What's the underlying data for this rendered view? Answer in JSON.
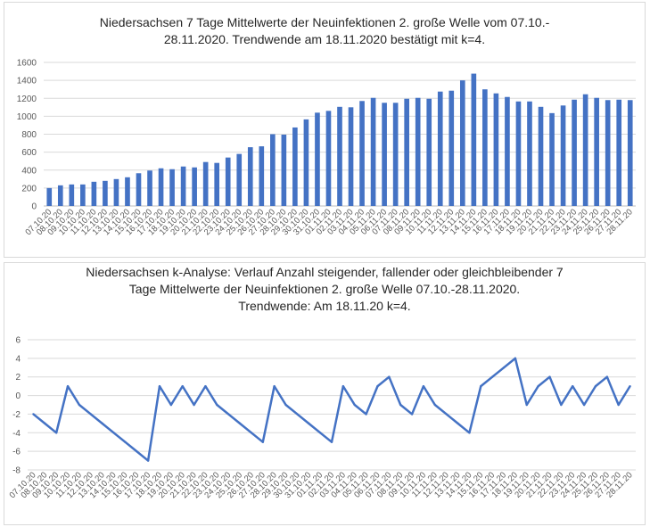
{
  "chart_data": [
    {
      "type": "bar",
      "title_lines": [
        "Niedersachsen 7 Tage Mittelwerte der Neuinfektionen 2. große Welle vom 07.10.-",
        "28.11.2020. Trendwende am 18.11.2020 bestätigt mit k=4."
      ],
      "categories": [
        "07.10.20",
        "08.10.20",
        "09.10.20",
        "10.10.20",
        "11.10.20",
        "12.10.20",
        "13.10.20",
        "14.10.20",
        "15.10.20",
        "16.10.20",
        "17.10.20",
        "18.10.20",
        "19.10.20",
        "20.10.20",
        "21.10.20",
        "22.10.20",
        "23.10.20",
        "24.10.20",
        "25.10.20",
        "26.10.20",
        "27.10.20",
        "28.10.20",
        "29.10.20",
        "30.10.20",
        "31.10.20",
        "01.11.20",
        "02.11.20",
        "03.11.20",
        "04.11.20",
        "05.11.20",
        "06.11.20",
        "07.11.20",
        "08.11.20",
        "09.11.20",
        "10.11.20",
        "11.11.20",
        "12.11.20",
        "13.11.20",
        "14.11.20",
        "15.11.20",
        "16.11.20",
        "17.11.20",
        "18.11.20",
        "19.11.20",
        "20.11.20",
        "21.11.20",
        "22.11.20",
        "23.11.20",
        "24.11.20",
        "25.11.20",
        "26.11.20",
        "27.11.20",
        "28.11.20"
      ],
      "values": [
        200,
        230,
        240,
        240,
        270,
        280,
        300,
        320,
        365,
        395,
        420,
        410,
        440,
        430,
        490,
        480,
        540,
        580,
        655,
        665,
        800,
        795,
        875,
        965,
        1040,
        1060,
        1105,
        1100,
        1170,
        1205,
        1150,
        1150,
        1195,
        1205,
        1195,
        1275,
        1285,
        1400,
        1475,
        1300,
        1255,
        1215,
        1165,
        1165,
        1105,
        1035,
        1120,
        1185,
        1245,
        1205,
        1180,
        1185,
        1180
      ],
      "yticks": [
        "1600",
        "1400",
        "1200",
        "1000",
        "800",
        "600",
        "400",
        "200",
        "0"
      ],
      "ylim": [
        0,
        1600
      ],
      "grid": true,
      "bar_color": "#4472c4"
    },
    {
      "type": "line",
      "title_lines": [
        "Niedersachsen k-Analyse: Verlauf Anzahl steigender, fallender oder gleichbleibender 7",
        "Tage Mittelwerte der Neuinfektionen 2. große Welle 07.10.-28.11.2020.",
        "Trendwende: Am 18.11.20 k=4."
      ],
      "categories": [
        "07.10.20",
        "08.10.20",
        "09.10.20",
        "10.10.20",
        "11.10.20",
        "12.10.20",
        "13.10.20",
        "14.10.20",
        "15.10.20",
        "16.10.20",
        "17.10.20",
        "18.10.20",
        "19.10.20",
        "20.10.20",
        "21.10.20",
        "22.10.20",
        "23.10.20",
        "24.10.20",
        "25.10.20",
        "26.10.20",
        "27.10.20",
        "28.10.20",
        "29.10.20",
        "30.10.20",
        "31.10.20",
        "01.11.20",
        "02.11.20",
        "03.11.20",
        "04.11.20",
        "05.11.20",
        "06.11.20",
        "07.11.20",
        "08.11.20",
        "09.11.20",
        "10.11.20",
        "11.11.20",
        "12.11.20",
        "13.11.20",
        "14.11.20",
        "15.11.20",
        "16.11.20",
        "17.11.20",
        "18.11.20",
        "19.11.20",
        "20.11.20",
        "21.11.20",
        "22.11.20",
        "23.11.20",
        "24.11.20",
        "25.11.20",
        "26.11.20",
        "27.11.20",
        "28.11.20"
      ],
      "values": [
        -2,
        -3,
        -4,
        1,
        -1,
        -2,
        -3,
        -4,
        -5,
        -6,
        -7,
        1,
        -1,
        1,
        -1,
        1,
        -1,
        -2,
        -3,
        -4,
        -5,
        1,
        -1,
        -2,
        -3,
        -4,
        -5,
        1,
        -1,
        -2,
        1,
        2,
        -1,
        -2,
        1,
        -1,
        -2,
        -3,
        -4,
        1,
        2,
        3,
        4,
        -1,
        1,
        2,
        -1,
        1,
        -1,
        1,
        2,
        -1,
        1
      ],
      "yticks": [
        "6",
        "4",
        "2",
        "0",
        "-2",
        "-4",
        "-6",
        "-8"
      ],
      "ylim": [
        -8,
        6
      ],
      "grid": true,
      "line_color": "#4472c4"
    }
  ]
}
